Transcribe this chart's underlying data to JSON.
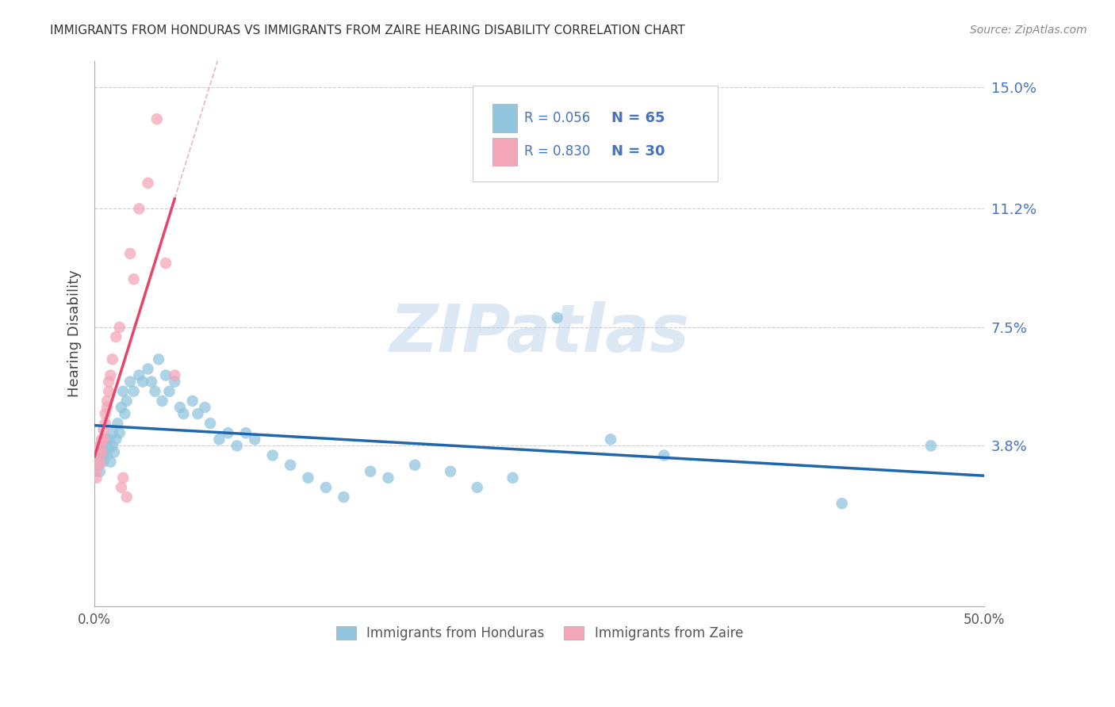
{
  "title": "IMMIGRANTS FROM HONDURAS VS IMMIGRANTS FROM ZAIRE HEARING DISABILITY CORRELATION CHART",
  "source": "Source: ZipAtlas.com",
  "ylabel": "Hearing Disability",
  "xlim": [
    0.0,
    0.5
  ],
  "ylim": [
    -0.012,
    0.158
  ],
  "color_honduras": "#92c5de",
  "color_zaire": "#f4a6b8",
  "color_line_honduras": "#2166ac",
  "color_line_zaire": "#e8446a",
  "color_line_zaire_dashed": "#e8b4c0",
  "ytick_vals": [
    0.038,
    0.075,
    0.112,
    0.15
  ],
  "ytick_labels": [
    "3.8%",
    "7.5%",
    "11.2%",
    "15.0%"
  ],
  "legend_text_color": "#4472c4",
  "watermark_color": "#dce9f5"
}
